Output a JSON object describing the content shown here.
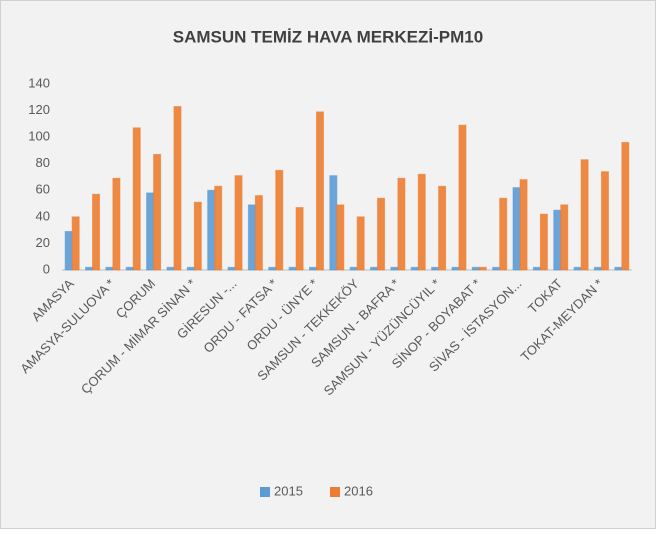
{
  "chart_data": {
    "type": "bar",
    "title": "SAMSUN TEMİZ HAVA MERKEZİ-PM10",
    "categories": [
      "AMASYA",
      null,
      "AMASYA-SULUOVA *",
      null,
      "ÇORUM",
      null,
      "ÇORUM - MİMAR SİNAN *",
      null,
      "GİRESUN -...",
      null,
      "ORDU - FATSA *",
      null,
      "ORDU - ÜNYE *",
      null,
      "SAMSUN - TEKKEKÖY",
      null,
      "SAMSUN - BAFRA *",
      null,
      "SAMSUN - YÜZÜNCÜYIL *",
      null,
      "SİNOP - BOYABAT *",
      null,
      "SİVAS - İSTASYON...",
      null,
      "TOKAT",
      null,
      "TOKAT-MEYDAN *",
      null
    ],
    "series": [
      {
        "name": "2015",
        "color": "#5b9bd5",
        "values": [
          29,
          2,
          2,
          2,
          58,
          2,
          2,
          60,
          2,
          49,
          2,
          2,
          2,
          71,
          2,
          2,
          2,
          2,
          2,
          2,
          2,
          2,
          62,
          2,
          45,
          2,
          2,
          2
        ]
      },
      {
        "name": "2016",
        "color": "#ed7d31",
        "values": [
          40,
          57,
          69,
          107,
          87,
          123,
          51,
          63,
          71,
          56,
          75,
          47,
          119,
          49,
          40,
          54,
          69,
          72,
          63,
          109,
          2,
          54,
          68,
          42,
          49,
          83,
          74,
          96
        ]
      }
    ],
    "ylim": [
      0,
      140
    ],
    "yticks": [
      0,
      20,
      40,
      60,
      80,
      100,
      120,
      140
    ],
    "grid": false,
    "legend": "bottom"
  }
}
